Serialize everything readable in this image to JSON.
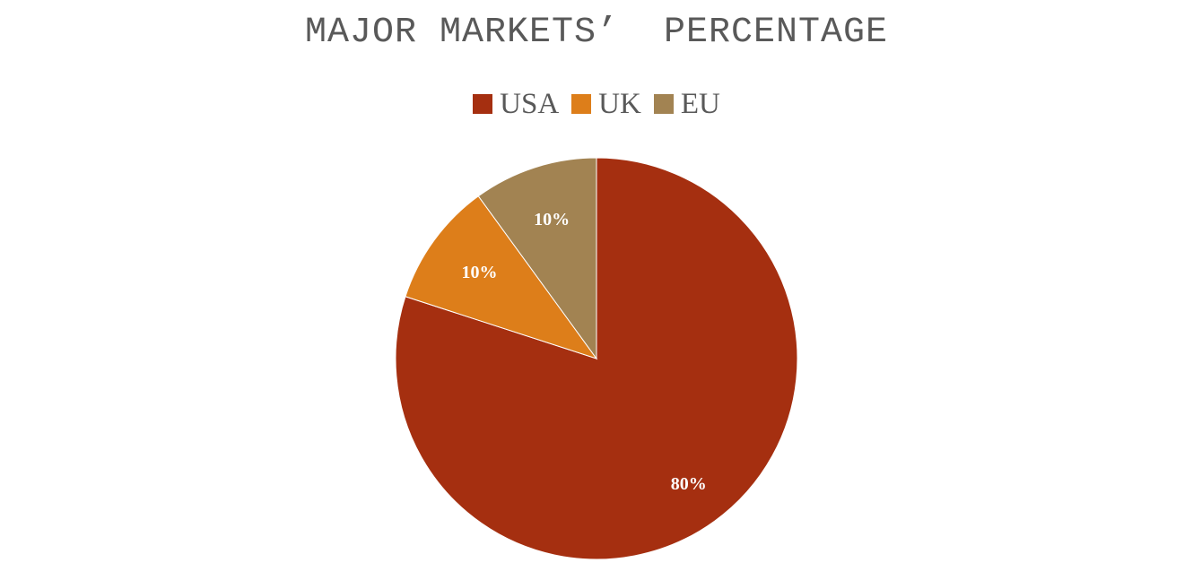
{
  "chart_data": {
    "type": "pie",
    "title": "MAJOR MARKETS’  PERCENTAGE",
    "legend_position": "top",
    "categories": [
      "USA",
      "UK",
      "EU"
    ],
    "values": [
      80,
      10,
      10
    ],
    "labels": [
      "80%",
      "10%",
      "10%"
    ],
    "colors": [
      "#a52f10",
      "#dd7e1a",
      "#a28352"
    ],
    "start_angle": "12 o'clock, clockwise"
  }
}
